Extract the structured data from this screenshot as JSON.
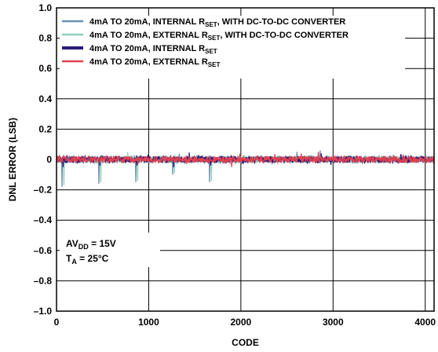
{
  "chart_data": {
    "type": "line",
    "xlabel": "CODE",
    "ylabel": "DNL ERROR (LSB)",
    "xlim": [
      0,
      4096
    ],
    "ylim": [
      -1.0,
      1.0
    ],
    "grid": true,
    "legend_placement": "top-left",
    "x_ticks": [
      0,
      1000,
      2000,
      3000,
      4000
    ],
    "x_tick_labels": [
      "0",
      "1000",
      "2000",
      "3000",
      "4000"
    ],
    "y_ticks": [
      1.0,
      0.8,
      0.6,
      0.4,
      0.2,
      0,
      -0.2,
      -0.4,
      -0.6,
      -0.8,
      -1.0
    ],
    "y_tick_labels": [
      "1.0",
      "0.8",
      "0.6",
      "0.4",
      "0.2",
      "0",
      "–0.2",
      "–0.4",
      "–0.6",
      "–0.8",
      "–1.0"
    ],
    "series": [
      {
        "name": {
          "main": "4mA TO 20mA, INTERNAL R",
          "sub": "SET",
          "tail": ", WITH DC-TO-DC CONVERTER"
        },
        "color": "#6b8fb5",
        "spikes": [
          [
            60,
            -0.18
          ],
          [
            460,
            -0.16
          ],
          [
            860,
            -0.15
          ],
          [
            1260,
            -0.1
          ],
          [
            1660,
            -0.15
          ],
          [
            2860,
            0.06
          ]
        ]
      },
      {
        "name": {
          "main": "4mA TO 20mA, EXTERNAL R",
          "sub": "SET",
          "tail": ", WITH DC-TO-DC CONVERTER"
        },
        "color": "#8fcfb5",
        "spikes": [
          [
            80,
            -0.17
          ],
          [
            480,
            -0.15
          ],
          [
            880,
            -0.14
          ],
          [
            1280,
            -0.09
          ],
          [
            1680,
            -0.14
          ]
        ]
      },
      {
        "name": {
          "main": "4mA TO 20mA, INTERNAL R",
          "sub": "SET",
          "tail": ""
        },
        "color": "#2a1a7a",
        "spikes": [
          [
            70,
            -0.05
          ],
          [
            470,
            -0.04
          ],
          [
            870,
            -0.04
          ],
          [
            1270,
            -0.05
          ],
          [
            1670,
            -0.04
          ],
          [
            2870,
            0.04
          ]
        ]
      },
      {
        "name": {
          "main": "4mA TO 20mA, EXTERNAL R",
          "sub": "SET",
          "tail": ""
        },
        "color": "#e04050",
        "spikes": [
          [
            2840,
            0.05
          ]
        ]
      }
    ],
    "annotation": {
      "line1_main": "AV",
      "line1_sub": "DD",
      "line1_tail": " = 15V",
      "line2_main": "T",
      "line2_sub": "A",
      "line2_tail": " = 25°C"
    }
  }
}
